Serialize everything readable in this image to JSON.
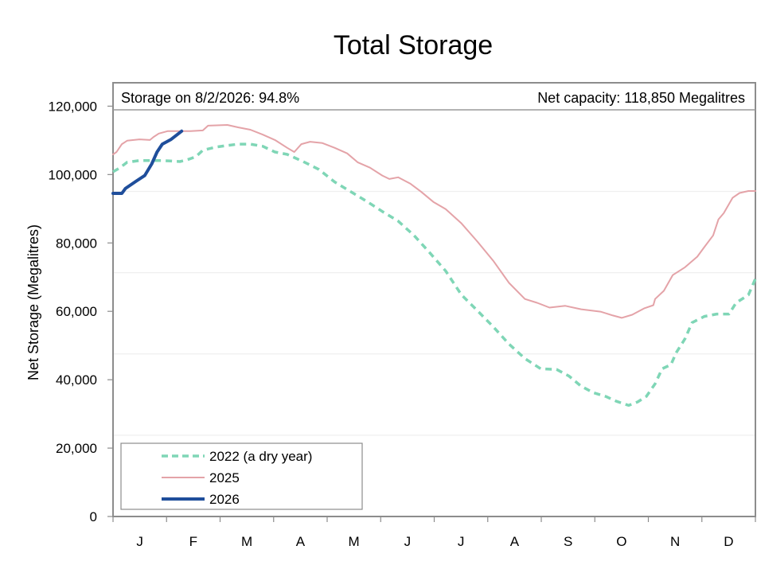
{
  "chart_data": {
    "type": "line",
    "title": "Total Storage",
    "xlabel": "",
    "ylabel": "Net Storage (Megalitres)",
    "ylim": [
      0,
      120000
    ],
    "yticks": [
      0,
      20000,
      40000,
      60000,
      80000,
      100000,
      120000
    ],
    "ytick_labels": [
      "0",
      "20,000",
      "40,000",
      "60,000",
      "80,000",
      "100,000",
      "120,000"
    ],
    "xlim_days": [
      0,
      365
    ],
    "x_categories": [
      "J",
      "F",
      "M",
      "A",
      "M",
      "J",
      "J",
      "A",
      "S",
      "O",
      "N",
      "D"
    ],
    "grid": "horizontal at 20%, 40%, 60%, 80% of net capacity",
    "capacity_ml": 118850,
    "annotations": {
      "storage_on": "Storage on 8/2/2026: 94.8%",
      "net_capacity": "Net capacity: 118,850 Megalitres"
    },
    "legend": {
      "placement": "bottom-left",
      "entries": [
        {
          "label": "2022 (a dry year)",
          "color": "#7fd6b6",
          "style": "dashed"
        },
        {
          "label": "2025",
          "color": "#e4a3a8",
          "style": "solid"
        },
        {
          "label": "2026",
          "color": "#1f4e9b",
          "style": "solid-thick"
        }
      ]
    },
    "x_unit": "day of year",
    "series": [
      {
        "name": "2022 (a dry year)",
        "color": "#7fd6b6",
        "points": [
          [
            0,
            100800
          ],
          [
            4,
            102000
          ],
          [
            8,
            103600
          ],
          [
            15,
            104100
          ],
          [
            28,
            104100
          ],
          [
            38,
            103800
          ],
          [
            42,
            104300
          ],
          [
            47,
            105200
          ],
          [
            51,
            107100
          ],
          [
            58,
            108000
          ],
          [
            65,
            108500
          ],
          [
            71,
            108900
          ],
          [
            78,
            108900
          ],
          [
            85,
            108300
          ],
          [
            92,
            106600
          ],
          [
            99,
            105900
          ],
          [
            108,
            103800
          ],
          [
            117,
            101500
          ],
          [
            126,
            97800
          ],
          [
            135,
            95000
          ],
          [
            144,
            92200
          ],
          [
            153,
            89200
          ],
          [
            162,
            86400
          ],
          [
            171,
            82200
          ],
          [
            180,
            77100
          ],
          [
            189,
            71800
          ],
          [
            198,
            64800
          ],
          [
            207,
            60200
          ],
          [
            216,
            55500
          ],
          [
            225,
            50400
          ],
          [
            234,
            46200
          ],
          [
            243,
            43200
          ],
          [
            252,
            43000
          ],
          [
            259,
            41100
          ],
          [
            266,
            38100
          ],
          [
            273,
            36200
          ],
          [
            280,
            35100
          ],
          [
            286,
            33700
          ],
          [
            293,
            32500
          ],
          [
            298,
            33500
          ],
          [
            303,
            35100
          ],
          [
            308,
            38800
          ],
          [
            312,
            43200
          ],
          [
            317,
            44400
          ],
          [
            320,
            47900
          ],
          [
            325,
            52000
          ],
          [
            329,
            56700
          ],
          [
            336,
            58500
          ],
          [
            343,
            59200
          ],
          [
            350,
            59200
          ],
          [
            354,
            62500
          ],
          [
            361,
            64800
          ],
          [
            365,
            69500
          ]
        ]
      },
      {
        "name": "2025",
        "color": "#e4a3a8",
        "points": [
          [
            0,
            105900
          ],
          [
            2,
            106600
          ],
          [
            5,
            108900
          ],
          [
            8,
            109900
          ],
          [
            15,
            110300
          ],
          [
            21,
            110100
          ],
          [
            23,
            111000
          ],
          [
            26,
            112000
          ],
          [
            31,
            112700
          ],
          [
            44,
            112700
          ],
          [
            51,
            112900
          ],
          [
            54,
            114300
          ],
          [
            65,
            114500
          ],
          [
            71,
            113800
          ],
          [
            78,
            113100
          ],
          [
            85,
            111700
          ],
          [
            92,
            110100
          ],
          [
            99,
            107800
          ],
          [
            103,
            106600
          ],
          [
            107,
            108900
          ],
          [
            112,
            109600
          ],
          [
            119,
            109200
          ],
          [
            126,
            107800
          ],
          [
            133,
            106200
          ],
          [
            139,
            103600
          ],
          [
            146,
            102000
          ],
          [
            153,
            99700
          ],
          [
            157,
            98700
          ],
          [
            162,
            99200
          ],
          [
            169,
            97300
          ],
          [
            175,
            95000
          ],
          [
            182,
            92000
          ],
          [
            189,
            89900
          ],
          [
            198,
            85700
          ],
          [
            207,
            80400
          ],
          [
            216,
            74800
          ],
          [
            225,
            68300
          ],
          [
            234,
            63600
          ],
          [
            241,
            62500
          ],
          [
            248,
            61100
          ],
          [
            257,
            61600
          ],
          [
            266,
            60600
          ],
          [
            277,
            59900
          ],
          [
            284,
            58800
          ],
          [
            289,
            58100
          ],
          [
            295,
            59000
          ],
          [
            302,
            60900
          ],
          [
            307,
            61800
          ],
          [
            308,
            63600
          ],
          [
            313,
            66000
          ],
          [
            318,
            70600
          ],
          [
            325,
            72900
          ],
          [
            332,
            76000
          ],
          [
            336,
            78800
          ],
          [
            341,
            82200
          ],
          [
            344,
            86900
          ],
          [
            347,
            88700
          ],
          [
            352,
            93200
          ],
          [
            356,
            94600
          ],
          [
            361,
            95200
          ],
          [
            365,
            95200
          ]
        ]
      },
      {
        "name": "2026",
        "color": "#1f4e9b",
        "points": [
          [
            0,
            94500
          ],
          [
            5,
            94500
          ],
          [
            7,
            95900
          ],
          [
            13,
            98000
          ],
          [
            18,
            99700
          ],
          [
            22,
            103100
          ],
          [
            25,
            106600
          ],
          [
            28,
            108900
          ],
          [
            33,
            110300
          ],
          [
            39,
            112700
          ]
        ]
      }
    ]
  }
}
